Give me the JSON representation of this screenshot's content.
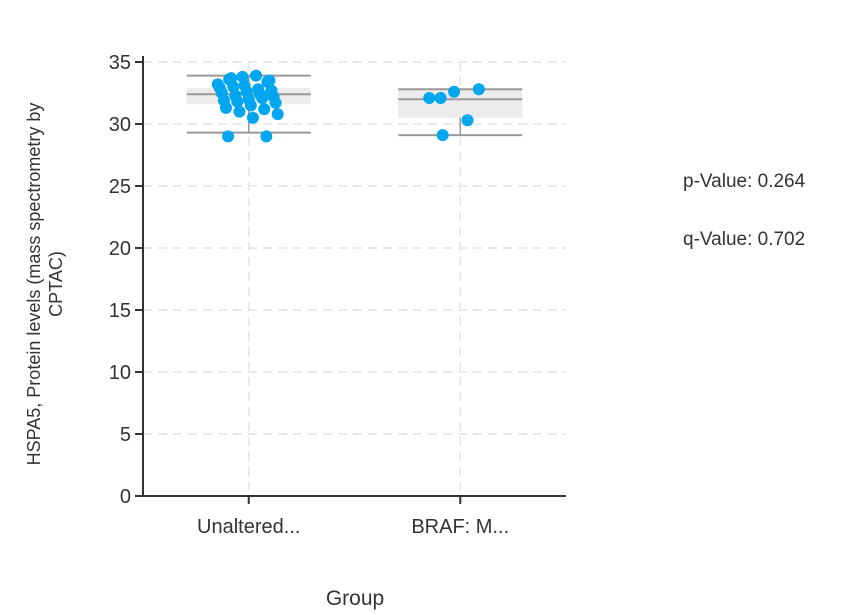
{
  "chart_data": {
    "type": "box",
    "xlabel": "Group",
    "ylabel": "HSPA5, Protein levels (mass spectrometry by CPTAC)",
    "ylim": [
      0,
      35
    ],
    "yticks": [
      0,
      5,
      10,
      15,
      20,
      25,
      30,
      35
    ],
    "grid": true,
    "categories": [
      "Unaltered...",
      "BRAF: M..."
    ],
    "boxes": [
      {
        "whisker_low": 29.3,
        "q1": 31.6,
        "median": 32.4,
        "q3": 32.9,
        "whisker_high": 33.9
      },
      {
        "whisker_low": 29.1,
        "q1": 30.5,
        "median": 32.0,
        "q3": 32.8,
        "whisker_high": 32.8
      }
    ],
    "points": [
      {
        "group": 0,
        "values": [
          33.6,
          33.4,
          33.8,
          33.2,
          33.9,
          33.7,
          33.5,
          33.1,
          32.9,
          32.8,
          33.0,
          32.7,
          32.6,
          32.5,
          32.4,
          32.3,
          32.2,
          32.0,
          31.9,
          32.1,
          31.8,
          31.7,
          31.5,
          31.3,
          31.2,
          31.0,
          30.8,
          30.5,
          29.0,
          29.0
        ]
      },
      {
        "group": 1,
        "values": [
          32.1,
          32.8,
          32.6,
          32.1,
          30.3,
          29.1
        ]
      }
    ],
    "point_color": "#00a6f0"
  },
  "stats": {
    "p_value": "p-Value: 0.264",
    "q_value": "q-Value: 0.702"
  }
}
